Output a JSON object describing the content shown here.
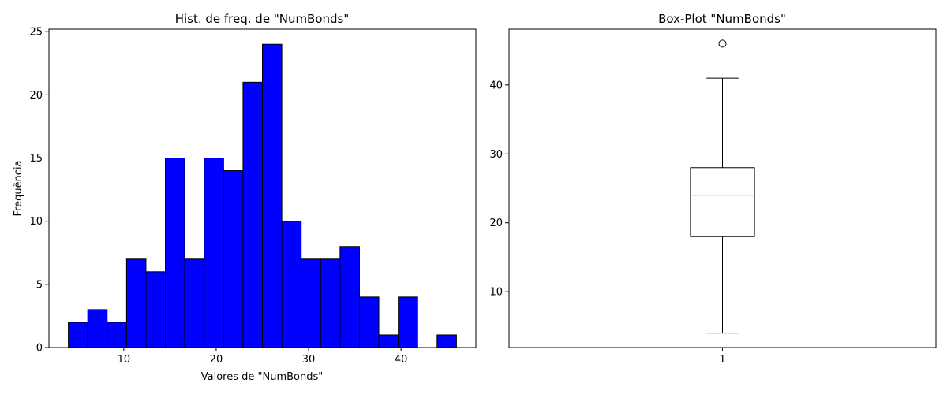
{
  "chart_data": [
    {
      "type": "bar",
      "title": "Hist. de freq. de \"NumBonds\"",
      "xlabel": "Valores de \"NumBonds\"",
      "ylabel": "Frequência",
      "xlim": [
        1.9,
        48.1
      ],
      "ylim": [
        0,
        25.2
      ],
      "xticks": [
        10,
        20,
        30,
        40
      ],
      "yticks": [
        0,
        5,
        10,
        15,
        20,
        25
      ],
      "bin_edges": [
        4.0,
        6.1,
        8.2,
        10.3,
        12.4,
        14.5,
        16.6,
        18.7,
        20.8,
        22.9,
        25.0,
        27.1,
        29.2,
        31.3,
        33.4,
        35.5,
        37.6,
        39.7,
        41.8,
        43.9,
        46.0
      ],
      "values": [
        2,
        3,
        2,
        7,
        6,
        15,
        7,
        15,
        14,
        21,
        24,
        10,
        7,
        7,
        8,
        4,
        1,
        4,
        0,
        1
      ],
      "color": "#0000ff",
      "edgecolor": "#000000",
      "grid": false
    },
    {
      "type": "box",
      "title": "Box-Plot \"NumBonds\"",
      "categories": [
        "1"
      ],
      "xlim": [
        0.5,
        1.5
      ],
      "ylim": [
        1.9,
        48.1
      ],
      "yticks": [
        10,
        20,
        30,
        40
      ],
      "whisker_low": 4,
      "q1": 18,
      "median": 24,
      "q3": 28,
      "whisker_high": 41,
      "outliers": [
        46
      ],
      "median_color": "#ff7f0e",
      "grid": false
    }
  ]
}
